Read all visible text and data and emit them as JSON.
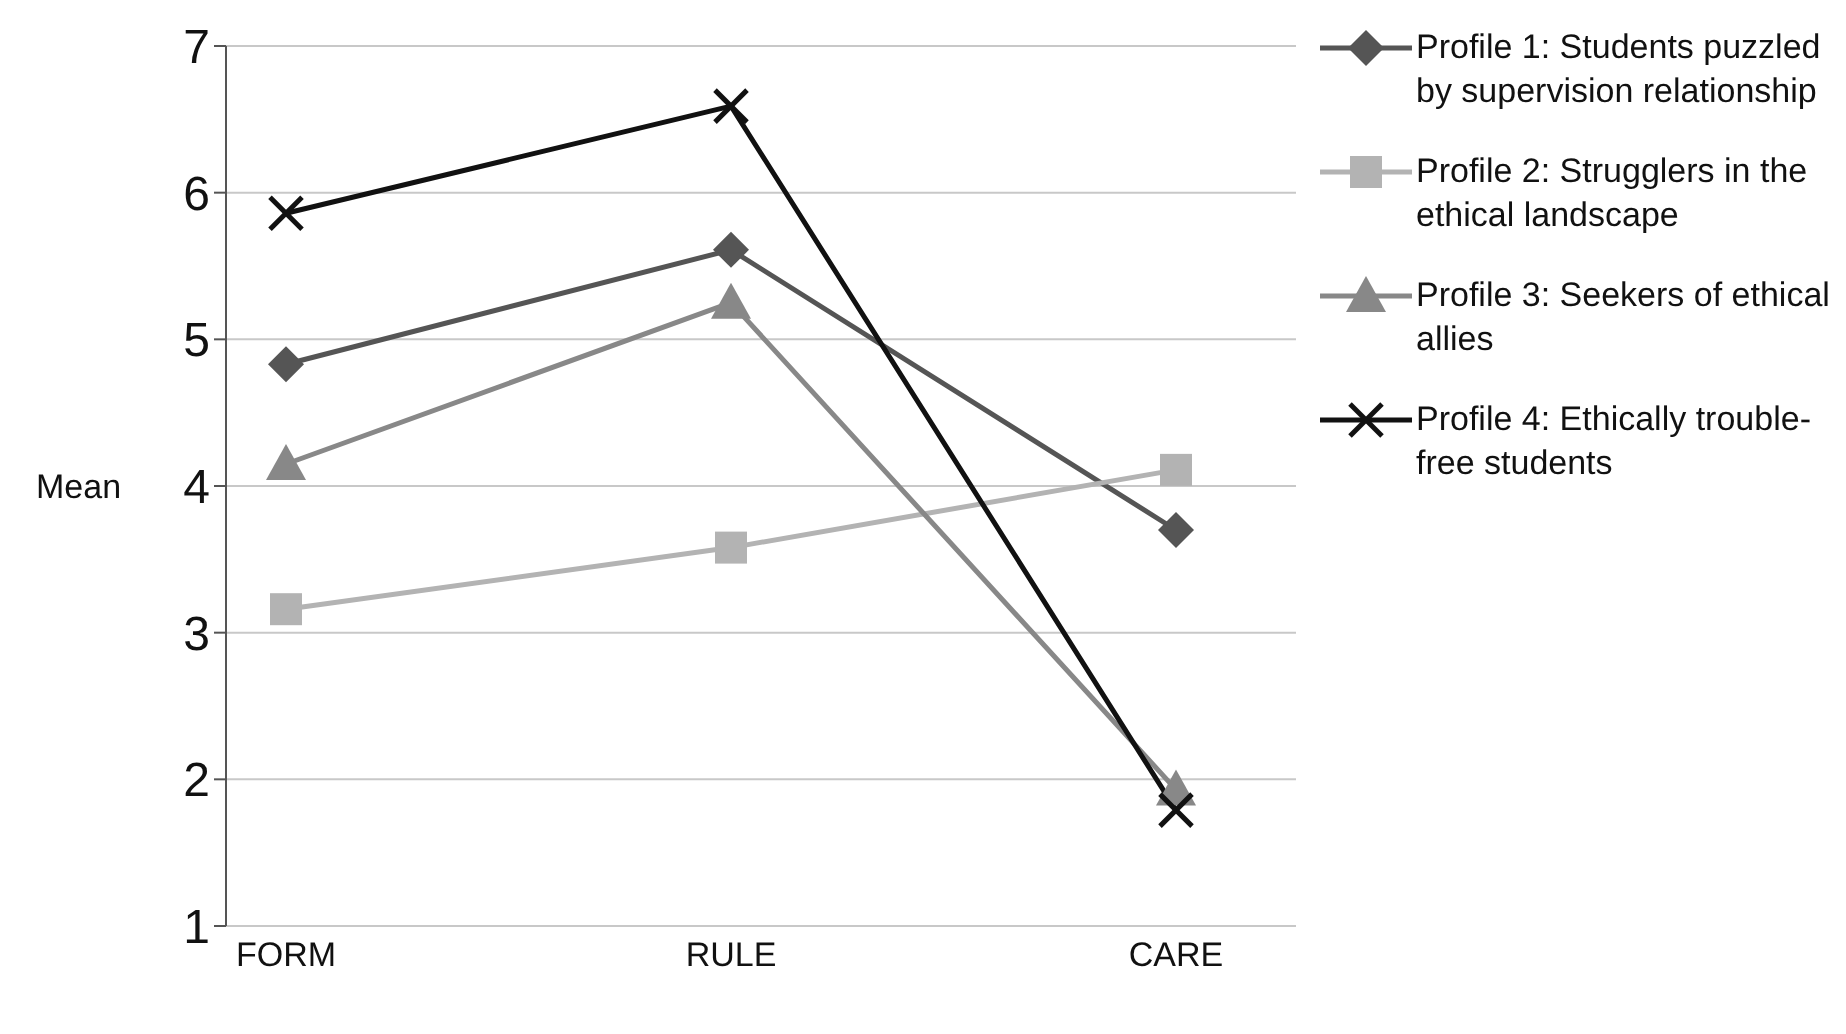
{
  "chart_data": {
    "type": "line",
    "ylabel": "Mean",
    "categories": [
      "FORM",
      "RULE",
      "CARE"
    ],
    "series": [
      {
        "name": "Profile 1: Students puzzled by supervision relationship",
        "color": "#555555",
        "marker": "diamond",
        "values": [
          4.83,
          5.61,
          3.7
        ]
      },
      {
        "name": "Profile 2: Strugglers in the ethical landscape",
        "color": "#b3b3b3",
        "marker": "square",
        "values": [
          3.16,
          3.58,
          4.11
        ]
      },
      {
        "name": "Profile 3: Seekers of ethical allies",
        "color": "#888888",
        "marker": "triangle",
        "values": [
          4.15,
          5.25,
          1.93
        ]
      },
      {
        "name": "Profile 4: Ethically trouble-free students",
        "color": "#111111",
        "marker": "cross",
        "values": [
          5.86,
          6.59,
          1.79
        ]
      }
    ],
    "ylim": [
      1,
      7
    ],
    "yticks": [
      1,
      2,
      3,
      4,
      5,
      6,
      7
    ],
    "grid": "y",
    "legend": "top right"
  }
}
